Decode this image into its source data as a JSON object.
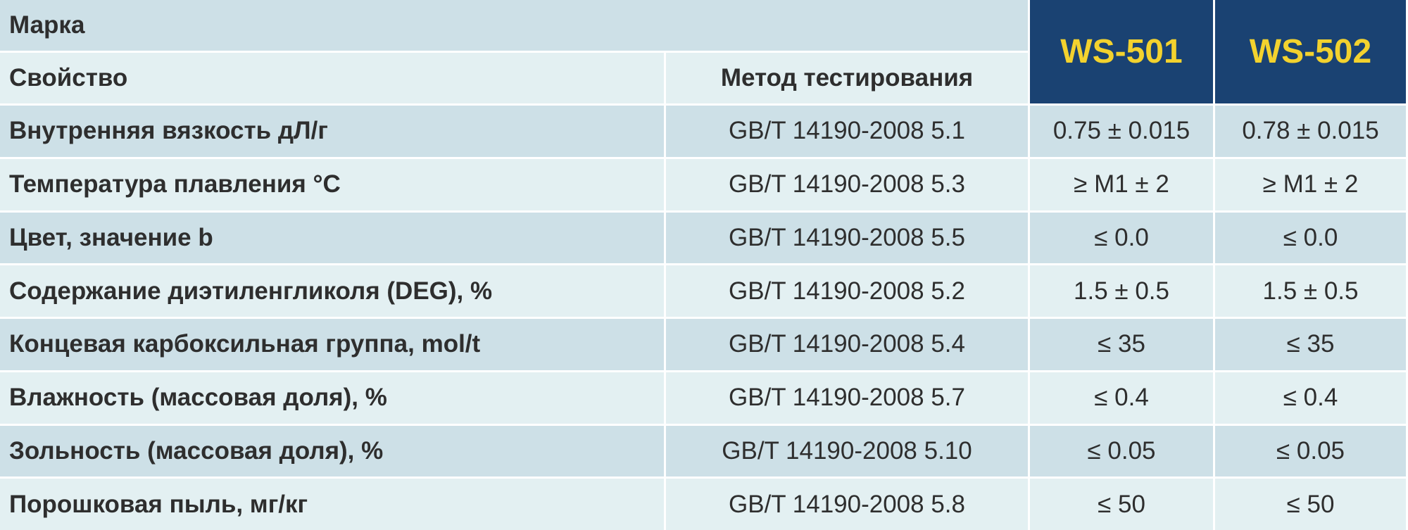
{
  "header": {
    "brand_label": "Марка",
    "property_label": "Свойство",
    "method_label": "Метод тестирования",
    "grades": [
      "WS-501",
      "WS-502"
    ]
  },
  "table": {
    "rows": [
      [
        "Внутренняя вязкость дЛ/г",
        "GB/T 14190-2008 5.1",
        "0.75 ± 0.015",
        "0.78 ± 0.015"
      ],
      [
        "Температура плавления °C",
        "GB/T 14190-2008 5.3",
        "≥ M1 ± 2",
        "≥ M1 ± 2"
      ],
      [
        "Цвет, значение b",
        "GB/T 14190-2008 5.5",
        "≤ 0.0",
        "≤ 0.0"
      ],
      [
        "Содержание диэтиленгликоля (DEG), %",
        "GB/T 14190-2008 5.2",
        "1.5 ± 0.5",
        "1.5 ± 0.5"
      ],
      [
        "Концевая карбоксильная группа, mol/t",
        "GB/T 14190-2008 5.4",
        "≤ 35",
        "≤ 35"
      ],
      [
        "Влажность (массовая доля), %",
        "GB/T 14190-2008 5.7",
        "≤ 0.4",
        "≤ 0.4"
      ],
      [
        "Зольность (массовая доля), %",
        "GB/T 14190-2008 5.10",
        "≤ 0.05",
        "≤ 0.05"
      ],
      [
        "Порошковая пыль, мг/кг",
        "GB/T 14190-2008 5.8",
        "≤ 50",
        "≤ 50"
      ]
    ]
  }
}
